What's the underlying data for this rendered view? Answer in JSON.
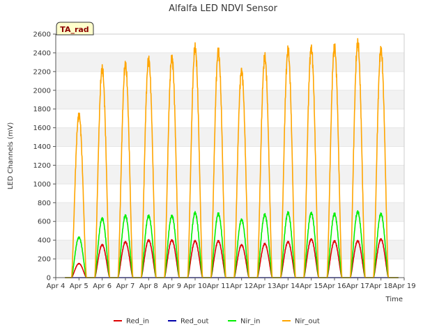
{
  "chart_data": {
    "type": "line",
    "title": "Alfalfa LED NDVI Sensor",
    "xlabel": "Time",
    "ylabel": "LED Channels (mV)",
    "ylim": [
      0,
      2600
    ],
    "yticks": [
      0,
      200,
      400,
      600,
      800,
      1000,
      1200,
      1400,
      1600,
      1800,
      2000,
      2200,
      2400,
      2600
    ],
    "x_tick_labels": [
      "Apr 4",
      "Apr 5",
      "Apr 6",
      "Apr 7",
      "Apr 8",
      "Apr 9",
      "Apr 10",
      "Apr 11",
      "Apr 12",
      "Apr 13",
      "Apr 14",
      "Apr 15",
      "Apr 16",
      "Apr 17",
      "Apr 18",
      "Apr 19"
    ],
    "annotation": "TA_rad",
    "legend_position": "bottom",
    "grid": "horizontal bands",
    "colors": {
      "Red_in": "#dd0000",
      "Red_out": "#0000aa",
      "Nir_in": "#00ee00",
      "Nir_out": "#ffa500"
    },
    "daily_peaks": {
      "days": [
        "Apr 5",
        "Apr 6",
        "Apr 7",
        "Apr 8",
        "Apr 9",
        "Apr 10",
        "Apr 11",
        "Apr 12",
        "Apr 13",
        "Apr 14",
        "Apr 15",
        "Apr 16",
        "Apr 17",
        "Apr 18"
      ],
      "Red_in": [
        150,
        350,
        380,
        400,
        400,
        390,
        390,
        350,
        360,
        380,
        410,
        390,
        390,
        410
      ],
      "Red_out": [
        0,
        0,
        0,
        0,
        0,
        0,
        0,
        0,
        0,
        0,
        0,
        0,
        0,
        0
      ],
      "Nir_in": [
        430,
        630,
        660,
        660,
        660,
        690,
        680,
        620,
        670,
        690,
        690,
        680,
        700,
        680
      ],
      "Nir_out": [
        1740,
        2230,
        2270,
        2330,
        2350,
        2450,
        2410,
        2210,
        2350,
        2420,
        2450,
        2460,
        2500,
        2430
      ]
    },
    "series": [
      {
        "name": "Red_in"
      },
      {
        "name": "Red_out"
      },
      {
        "name": "Nir_in"
      },
      {
        "name": "Nir_out"
      }
    ]
  }
}
